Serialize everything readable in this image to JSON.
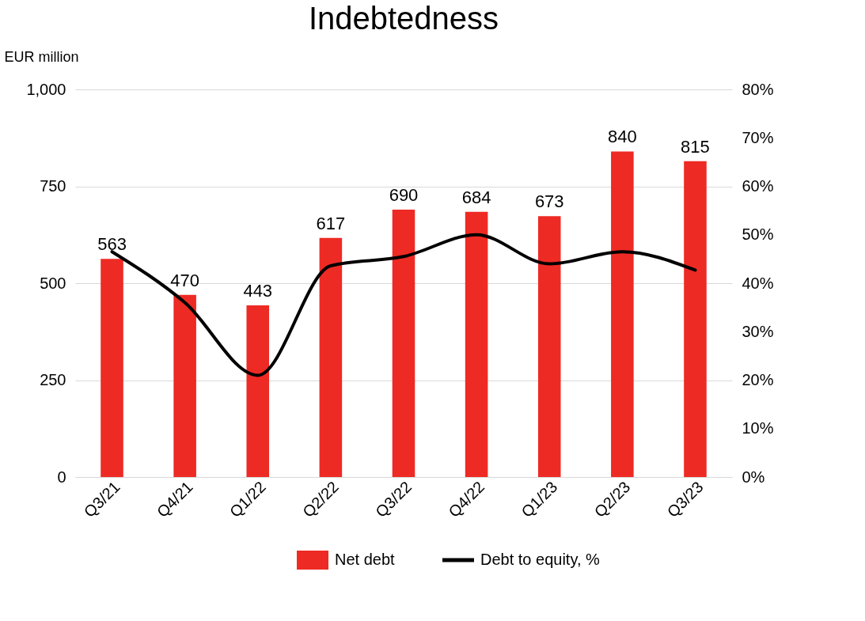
{
  "chart_data": {
    "type": "bar",
    "title": "Indebtedness",
    "ylabel": "EUR million",
    "categories": [
      "Q3/21",
      "Q4/21",
      "Q1/22",
      "Q2/22",
      "Q3/22",
      "Q4/22",
      "Q1/23",
      "Q2/23",
      "Q3/23"
    ],
    "series": [
      {
        "name": "Net debt",
        "color": "#ee2a24",
        "values": [
          563,
          470,
          443,
          617,
          690,
          684,
          673,
          840,
          815
        ],
        "value_labels": [
          "563",
          "470",
          "443",
          "617",
          "690",
          "684",
          "673",
          "840",
          "815"
        ]
      },
      {
        "name": "Debt to equity, %",
        "type": "line",
        "axis": "y2",
        "color": "#000000",
        "values": [
          46.5,
          36,
          21,
          43.6,
          45.5,
          50,
          44,
          46.5,
          42.7
        ]
      }
    ],
    "ylim": [
      0,
      1000
    ],
    "yticks": [
      0,
      250,
      500,
      750,
      {
        "value": 1000,
        "label": "1,000"
      }
    ],
    "y2lim": [
      0,
      80
    ],
    "y2ticks": [
      {
        "value": 0,
        "label": "0%"
      },
      {
        "value": 10,
        "label": "10%"
      },
      {
        "value": 20,
        "label": "20%"
      },
      {
        "value": 30,
        "label": "30%"
      },
      {
        "value": 40,
        "label": "40%"
      },
      {
        "value": 50,
        "label": "50%"
      },
      {
        "value": 60,
        "label": "60%"
      },
      {
        "value": 70,
        "label": "70%"
      },
      {
        "value": 80,
        "label": "80%"
      }
    ],
    "grid": "y",
    "legend": "bottom",
    "marker": "none",
    "line_style": "solid"
  }
}
